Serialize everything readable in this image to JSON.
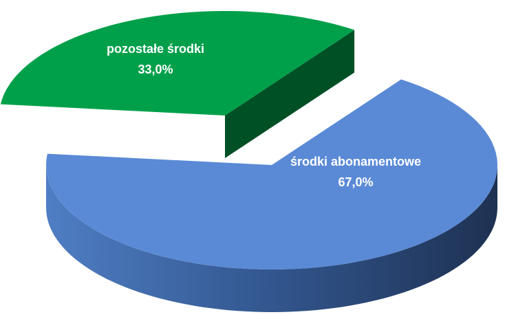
{
  "chart_data": {
    "type": "pie",
    "categories": [
      "środki abonamentowe",
      "pozostałe środki"
    ],
    "values": [
      67,
      33
    ],
    "value_labels": [
      "67,0%",
      "33,0%"
    ],
    "colors": [
      "#5a8ad6",
      "#00a04a"
    ]
  }
}
